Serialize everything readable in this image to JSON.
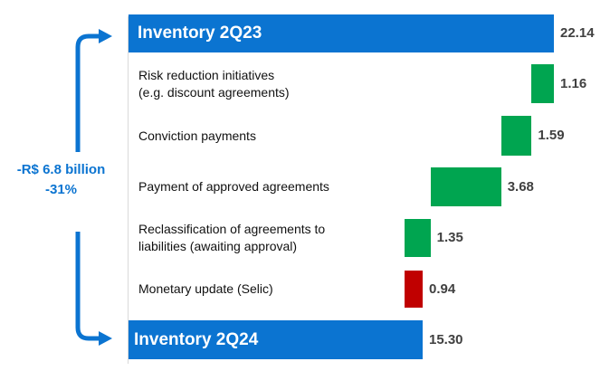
{
  "chart_data": {
    "type": "bar",
    "orientation": "horizontal-waterfall",
    "unit": "R$ billion",
    "categories": [
      "Inventory 2Q23",
      "Risk reduction initiatives (e.g. discount agreements)",
      "Conviction payments",
      "Payment of approved agreements",
      "Reclassification of agreements to liabilities (awaiting approval)",
      "Monetary update (Selic)",
      "Inventory 2Q24"
    ],
    "bars": [
      {
        "label": "Inventory 2Q23",
        "label_lines": [
          "Inventory 2Q23"
        ],
        "value": 22.14,
        "value_label": "22.14",
        "kind": "total"
      },
      {
        "label": "Risk reduction initiatives (e.g. discount agreements)",
        "label_lines": [
          "Risk reduction initiatives",
          "(e.g. discount agreements)"
        ],
        "value": -1.16,
        "value_label": "1.16",
        "kind": "decrease"
      },
      {
        "label": "Conviction payments",
        "label_lines": [
          "Conviction payments"
        ],
        "value": -1.59,
        "value_label": "1.59",
        "kind": "decrease"
      },
      {
        "label": "Payment of approved agreements",
        "label_lines": [
          "Payment of approved agreements"
        ],
        "value": -3.68,
        "value_label": "3.68",
        "kind": "decrease"
      },
      {
        "label": "Reclassification of agreements to liabilities (awaiting approval)",
        "label_lines": [
          "Reclassification of agreements to",
          "liabilities (awaiting approval)"
        ],
        "value": -1.35,
        "value_label": "1.35",
        "kind": "decrease"
      },
      {
        "label": "Monetary update (Selic)",
        "label_lines": [
          "Monetary update (Selic)"
        ],
        "value": 0.94,
        "value_label": "0.94",
        "kind": "increase"
      },
      {
        "label": "Inventory 2Q24",
        "label_lines": [
          "Inventory 2Q24"
        ],
        "value": 15.3,
        "value_label": "15.30",
        "kind": "total"
      }
    ],
    "annotation": {
      "line1": "-R$ 6.8 billion",
      "line2": "-31%"
    },
    "colors": {
      "total": "#0b74d1",
      "decrease": "#00a550",
      "increase": "#c00000",
      "arrow": "#0b74d1"
    },
    "grid": false,
    "legend": "none"
  }
}
